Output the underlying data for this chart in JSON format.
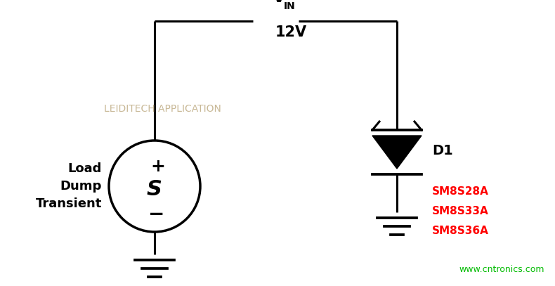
{
  "bg_color": "#ffffff",
  "line_color": "#000000",
  "watermark_text": "LEIDITECH APPLICATION",
  "watermark_color": "#c8b896",
  "website_text": "www.cntronics.com",
  "website_color": "#00bb00",
  "label_load": "Load\nDump\nTransient",
  "label_d1": "D1",
  "label_parts": [
    "SM8S28A",
    "SM8S33A",
    "SM8S36A"
  ],
  "parts_color": "#ff0000",
  "lw": 2.2,
  "fig_w": 7.9,
  "fig_h": 4.07,
  "dpi": 100
}
